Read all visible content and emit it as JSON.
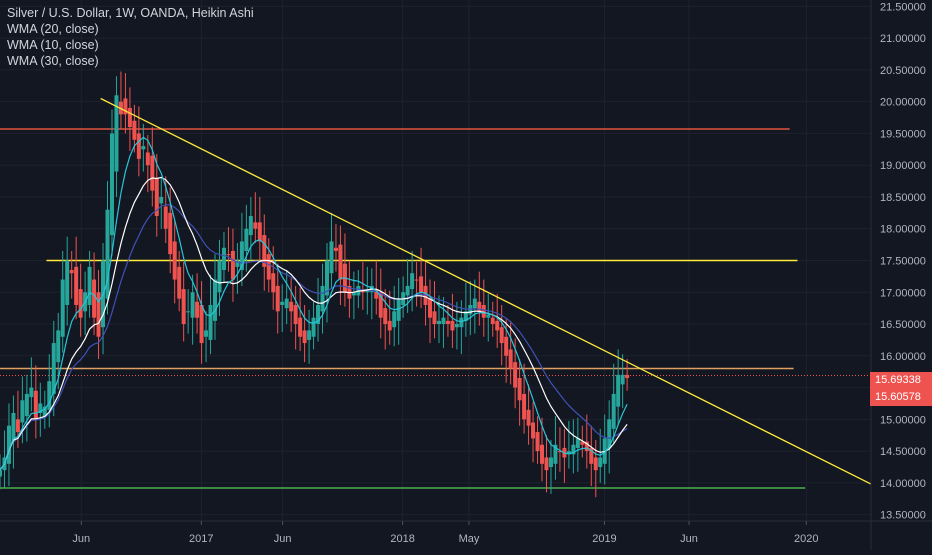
{
  "legend": {
    "symbol": "Silver / U.S. Dollar, 1W, OANDA, Heikin Ashi",
    "wma20": "WMA (20, close)",
    "wma10": "WMA (10, close)",
    "wma30": "WMA (30, close)"
  },
  "badges": {
    "last_price": "15.69338",
    "second_price": "15.60578"
  },
  "colors": {
    "background": "#131722",
    "up_candle": "#26a69a",
    "down_candle": "#ef5350",
    "axis_text": "#b2b5be",
    "wma20": "#ffffff",
    "wma10": "#26c6da",
    "wma30": "#3f51b5",
    "trend_line": "#ffeb3b",
    "support_green": "#4caf50",
    "resistance_red": "#ef5350",
    "level_orange": "#ff9800",
    "badge_red": "#ef5350",
    "badge_teal": "#ef5350"
  },
  "chart_data": {
    "type": "candlestick",
    "title": "Silver / U.S. Dollar, 1W, OANDA, Heikin Ashi",
    "y_axis": {
      "ticks": [
        "21.50000",
        "21.00000",
        "20.50000",
        "20.00000",
        "19.50000",
        "19.00000",
        "18.50000",
        "18.00000",
        "17.50000",
        "17.00000",
        "16.50000",
        "16.00000",
        "15.50000",
        "15.00000",
        "14.50000",
        "14.00000",
        "13.50000"
      ],
      "ylim": [
        13.4,
        21.6
      ]
    },
    "x_axis": {
      "ticks": [
        "Jun",
        "2017",
        "Jun",
        "2018",
        "May",
        "2019",
        "Jun",
        "2020"
      ],
      "range": [
        "2016-01-04",
        "2020-04-27"
      ]
    },
    "horizontal_levels": [
      {
        "name": "resistance",
        "value": 19.57,
        "color": "#e0533f",
        "start": "2016-01-04",
        "end": "2019-12-02"
      },
      {
        "name": "range-high",
        "value": 17.5,
        "color": "#ffeb3b",
        "start": "2016-03-28",
        "end": "2019-12-16"
      },
      {
        "name": "level",
        "value": 15.8,
        "color": "#e0a060",
        "start": "2016-01-04",
        "end": "2019-12-09"
      },
      {
        "name": "support",
        "value": 13.92,
        "color": "#4caf50",
        "start": "2016-01-04",
        "end": "2019-12-30"
      }
    ],
    "trend_line": {
      "points": [
        [
          "2016-07-04",
          20.05
        ],
        [
          "2019-03-18",
          15.75
        ]
      ],
      "extend_to": "2020-04-27",
      "color": "#ffeb3b"
    },
    "price_line": 15.69,
    "series": [
      {
        "name": "Silver / U.S. Dollar, Heikin Ashi",
        "candles_mid": [
          14.2,
          14.4,
          14.9,
          15.1,
          14.8,
          15.3,
          15.4,
          15.5,
          15.0,
          15.1,
          15.2,
          15.6,
          16.2,
          16.4,
          17.2,
          17.5,
          17.3,
          16.8,
          16.6,
          17.0,
          17.4,
          16.6,
          16.3,
          17.5,
          18.3,
          19.5,
          20.1,
          20.0,
          19.8,
          19.6,
          19.4,
          19.1,
          19.3,
          19.0,
          18.6,
          18.2,
          18.5,
          18.0,
          17.6,
          17.2,
          16.9,
          16.5,
          16.7,
          17.0,
          16.6,
          16.2,
          16.3,
          16.8,
          17.2,
          17.5,
          17.7,
          17.6,
          17.2,
          17.5,
          17.8,
          18.0,
          18.2,
          18.0,
          17.8,
          17.4,
          17.2,
          17.0,
          16.7,
          16.8,
          16.9,
          16.7,
          16.5,
          16.3,
          16.2,
          16.4,
          16.6,
          16.8,
          17.1,
          17.5,
          17.8,
          17.7,
          17.2,
          17.0,
          16.9,
          17.0,
          17.1,
          17.0,
          17.0,
          17.1,
          16.9,
          16.6,
          16.5,
          16.4,
          16.7,
          16.9,
          17.0,
          17.1,
          17.3,
          17.2,
          17.0,
          16.8,
          16.6,
          16.5,
          16.5,
          16.6,
          16.5,
          16.4,
          16.5,
          16.6,
          16.7,
          16.8,
          16.9,
          16.7,
          16.6,
          16.6,
          16.5,
          16.4,
          16.2,
          16.0,
          15.8,
          15.5,
          15.3,
          15.0,
          14.9,
          14.7,
          14.5,
          14.3,
          14.2,
          14.4,
          14.6,
          14.5,
          14.4,
          14.5,
          14.6,
          14.7,
          14.6,
          14.5,
          14.3,
          14.2,
          14.4,
          14.7,
          15.0,
          15.4,
          15.7,
          15.7,
          15.65
        ]
      }
    ]
  }
}
